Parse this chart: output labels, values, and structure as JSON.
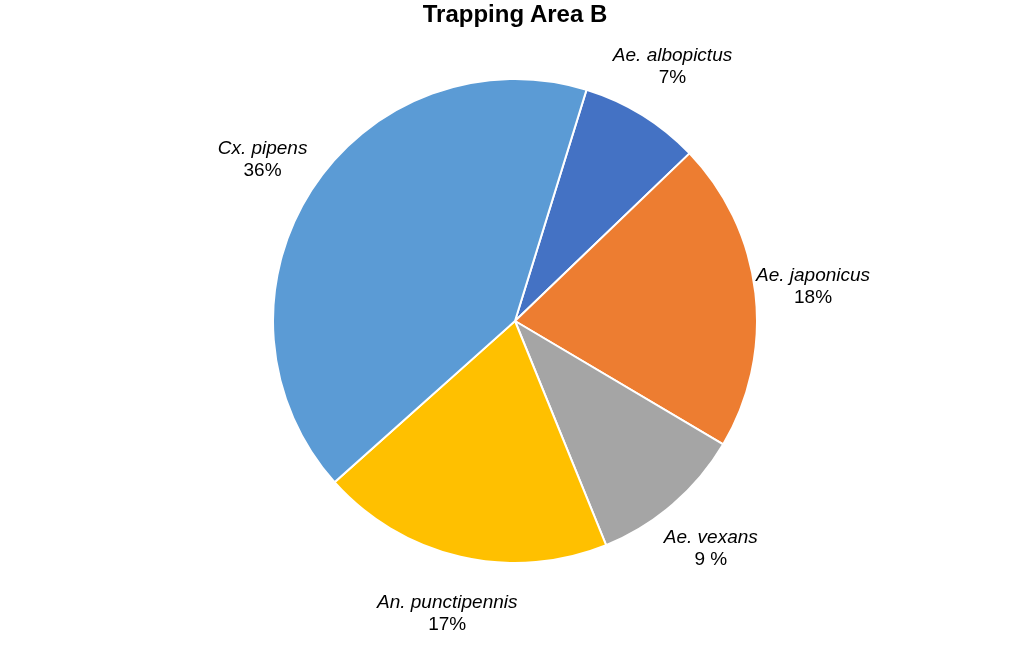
{
  "chart_data": {
    "type": "pie",
    "title": "Trapping Area B",
    "categories": [
      "Ae. albopictus",
      "Ae. japonicus",
      "Ae. vexans",
      "An. punctipennis",
      "Cx. pipens"
    ],
    "values": [
      7,
      18,
      9,
      17,
      36
    ],
    "value_labels": [
      "7%",
      "18%",
      "9 %",
      "17%",
      "36%"
    ],
    "colors": [
      "#4472c4",
      "#ed7d31",
      "#a5a5a5",
      "#ffc000",
      "#5b9bd5"
    ],
    "legend": false
  }
}
